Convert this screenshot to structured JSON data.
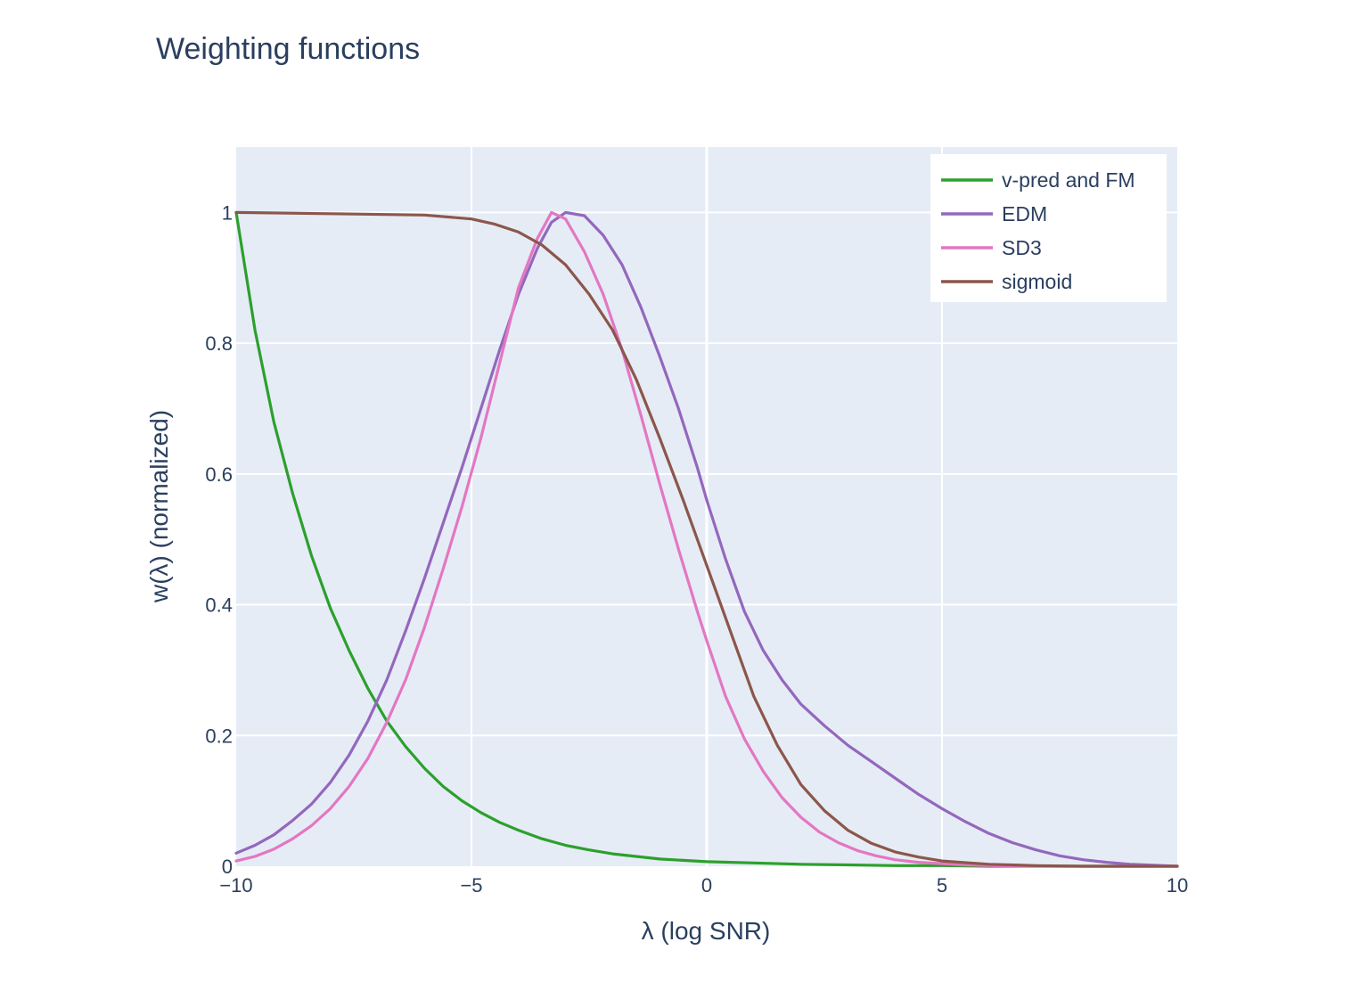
{
  "chart_data": {
    "type": "line",
    "title": "Weighting functions",
    "xlabel": "λ (log SNR)",
    "ylabel": "w(λ) (normalized)",
    "xlim": [
      -10,
      10
    ],
    "ylim": [
      0,
      1.1
    ],
    "x_ticks": [
      -10,
      -5,
      0,
      5,
      10
    ],
    "x_tick_labels": [
      "−10",
      "−5",
      "0",
      "5",
      "10"
    ],
    "y_ticks": [
      0,
      0.2,
      0.4,
      0.6,
      0.8,
      1
    ],
    "y_tick_labels": [
      "0",
      "0.2",
      "0.4",
      "0.6",
      "0.8",
      "1"
    ],
    "grid": true,
    "legend_position": "top-right",
    "background_color": "#e5ecf6",
    "series": [
      {
        "name": "v-pred and FM",
        "color": "#2ca02c",
        "x": [
          -10,
          -9.6,
          -9.2,
          -8.8,
          -8.4,
          -8.0,
          -7.6,
          -7.2,
          -6.8,
          -6.4,
          -6.0,
          -5.6,
          -5.2,
          -4.8,
          -4.4,
          -4.0,
          -3.5,
          -3.0,
          -2.5,
          -2.0,
          -1.5,
          -1.0,
          -0.5,
          0,
          1,
          2,
          3,
          4,
          5,
          6,
          7,
          8,
          9,
          10
        ],
        "y": [
          1.0,
          0.82,
          0.68,
          0.57,
          0.475,
          0.395,
          0.33,
          0.272,
          0.222,
          0.183,
          0.15,
          0.122,
          0.1,
          0.082,
          0.067,
          0.055,
          0.042,
          0.032,
          0.025,
          0.019,
          0.015,
          0.011,
          0.009,
          0.007,
          0.005,
          0.003,
          0.002,
          0.001,
          0.001,
          0.0,
          0.0,
          0.0,
          0.0,
          0.0
        ]
      },
      {
        "name": "EDM",
        "color": "#9467bd",
        "x": [
          -10,
          -9.6,
          -9.2,
          -8.8,
          -8.4,
          -8.0,
          -7.6,
          -7.2,
          -6.8,
          -6.4,
          -6.0,
          -5.6,
          -5.2,
          -4.8,
          -4.4,
          -4.0,
          -3.6,
          -3.3,
          -3.0,
          -2.6,
          -2.2,
          -1.8,
          -1.4,
          -1.0,
          -0.6,
          -0.2,
          0,
          0.4,
          0.8,
          1.2,
          1.6,
          2.0,
          2.5,
          3.0,
          3.5,
          4.0,
          4.5,
          5.0,
          5.5,
          6.0,
          6.5,
          7.0,
          7.5,
          8.0,
          8.5,
          9.0,
          10.0
        ],
        "y": [
          0.02,
          0.032,
          0.048,
          0.07,
          0.095,
          0.128,
          0.17,
          0.222,
          0.285,
          0.36,
          0.44,
          0.525,
          0.61,
          0.7,
          0.79,
          0.875,
          0.945,
          0.985,
          1.0,
          0.995,
          0.965,
          0.92,
          0.855,
          0.78,
          0.7,
          0.61,
          0.56,
          0.47,
          0.39,
          0.33,
          0.285,
          0.248,
          0.215,
          0.185,
          0.16,
          0.135,
          0.11,
          0.088,
          0.068,
          0.05,
          0.036,
          0.025,
          0.016,
          0.01,
          0.006,
          0.003,
          0.0
        ]
      },
      {
        "name": "SD3",
        "color": "#e377c2",
        "x": [
          -10,
          -9.6,
          -9.2,
          -8.8,
          -8.4,
          -8.0,
          -7.6,
          -7.2,
          -6.8,
          -6.4,
          -6.0,
          -5.6,
          -5.2,
          -4.8,
          -4.4,
          -4.0,
          -3.6,
          -3.3,
          -3.0,
          -2.6,
          -2.2,
          -1.8,
          -1.4,
          -1.0,
          -0.6,
          -0.2,
          0,
          0.4,
          0.8,
          1.2,
          1.6,
          2.0,
          2.4,
          2.8,
          3.2,
          3.6,
          4.0,
          4.5,
          5.0,
          5.5,
          6.0,
          7.0,
          8.0,
          10.0
        ],
        "y": [
          0.008,
          0.015,
          0.026,
          0.042,
          0.062,
          0.088,
          0.122,
          0.165,
          0.22,
          0.285,
          0.365,
          0.455,
          0.55,
          0.655,
          0.77,
          0.885,
          0.96,
          1.0,
          0.99,
          0.94,
          0.875,
          0.79,
          0.69,
          0.585,
          0.485,
          0.39,
          0.345,
          0.26,
          0.195,
          0.145,
          0.105,
          0.075,
          0.052,
          0.036,
          0.024,
          0.016,
          0.01,
          0.006,
          0.004,
          0.002,
          0.001,
          0.0,
          0.0,
          0.0
        ]
      },
      {
        "name": "sigmoid",
        "color": "#8c564b",
        "x": [
          -10,
          -8,
          -6,
          -5,
          -4.5,
          -4.0,
          -3.5,
          -3.0,
          -2.5,
          -2.0,
          -1.5,
          -1.0,
          -0.5,
          0,
          0.5,
          1.0,
          1.5,
          2.0,
          2.5,
          3.0,
          3.5,
          4.0,
          4.5,
          5.0,
          6.0,
          7.0,
          8.0,
          10.0
        ],
        "y": [
          1.0,
          0.998,
          0.996,
          0.99,
          0.982,
          0.97,
          0.95,
          0.92,
          0.875,
          0.82,
          0.745,
          0.655,
          0.56,
          0.46,
          0.36,
          0.26,
          0.185,
          0.125,
          0.085,
          0.055,
          0.035,
          0.022,
          0.014,
          0.008,
          0.003,
          0.001,
          0.0,
          0.0
        ]
      }
    ]
  }
}
